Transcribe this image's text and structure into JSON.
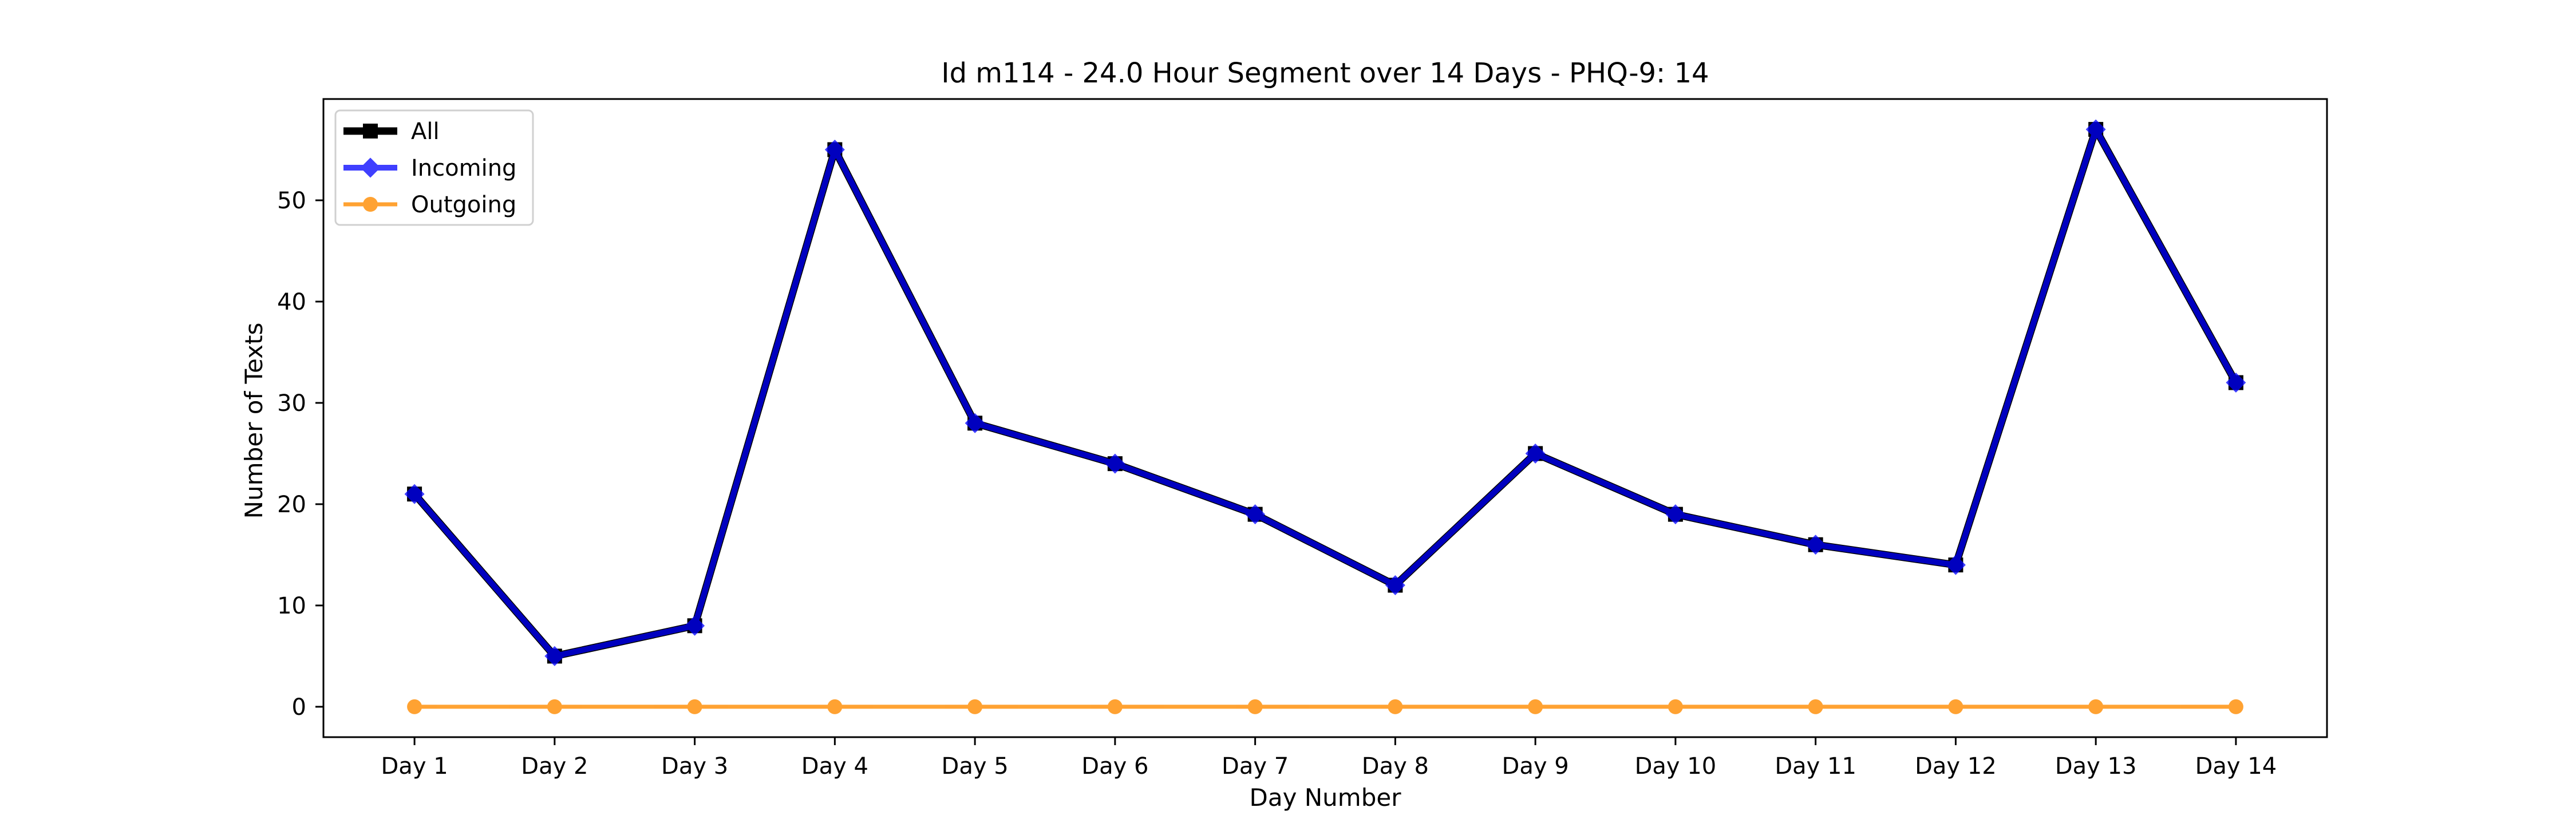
{
  "chart_data": {
    "type": "line",
    "title": "Id m114 - 24.0 Hour Segment over 14 Days - PHQ-9: 14",
    "xlabel": "Day Number",
    "ylabel": "Number of Texts",
    "categories": [
      "Day 1",
      "Day 2",
      "Day 3",
      "Day 4",
      "Day 5",
      "Day 6",
      "Day 7",
      "Day 8",
      "Day 9",
      "Day 10",
      "Day 11",
      "Day 12",
      "Day 13",
      "Day 14"
    ],
    "ylim": [
      -3,
      60
    ],
    "yticks": [
      0,
      10,
      20,
      30,
      40,
      50
    ],
    "legend_position": "upper-left",
    "grid": false,
    "series": [
      {
        "name": "All",
        "color": "#000000",
        "marker": "square",
        "values": [
          21,
          5,
          8,
          55,
          28,
          24,
          19,
          12,
          25,
          19,
          16,
          14,
          57,
          32
        ]
      },
      {
        "name": "Incoming",
        "color": "#0000ff",
        "marker": "diamond",
        "values": [
          21,
          5,
          8,
          55,
          28,
          24,
          19,
          12,
          25,
          19,
          16,
          14,
          57,
          32
        ]
      },
      {
        "name": "Outgoing",
        "color": "#ff8c00",
        "marker": "circle",
        "values": [
          0,
          0,
          0,
          0,
          0,
          0,
          0,
          0,
          0,
          0,
          0,
          0,
          0,
          0
        ]
      }
    ]
  }
}
